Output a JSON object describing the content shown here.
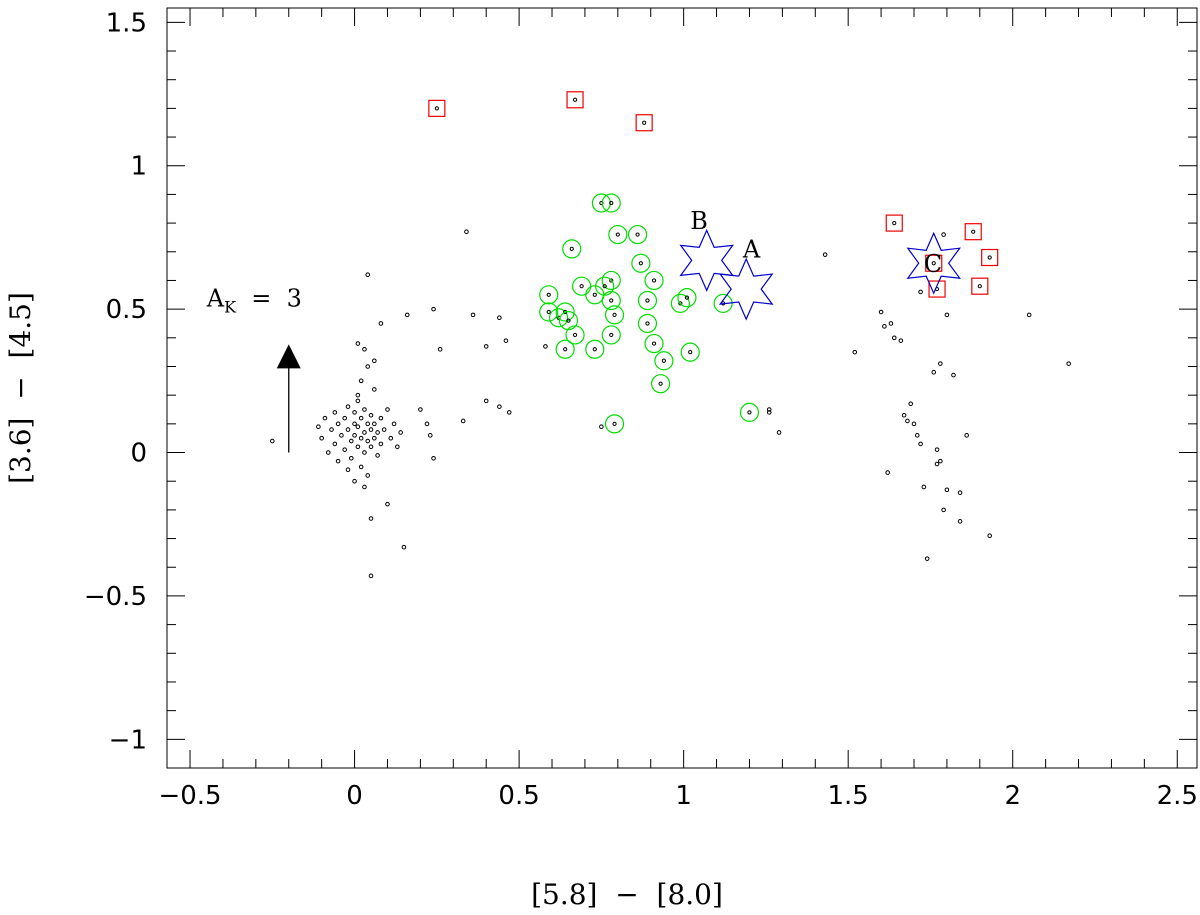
{
  "chart_data": {
    "type": "scatter",
    "title": "",
    "xlabel": "[5.8]  −  [8.0]",
    "ylabel": "[3.6]  −  [4.5]",
    "xlim": [
      -0.57,
      2.56
    ],
    "ylim": [
      -1.1,
      1.55
    ],
    "x_ticks": [
      {
        "value": -0.5,
        "label": "−0.5"
      },
      {
        "value": 0,
        "label": "0"
      },
      {
        "value": 0.5,
        "label": "0.5"
      },
      {
        "value": 1,
        "label": "1"
      },
      {
        "value": 1.5,
        "label": "1.5"
      },
      {
        "value": 2,
        "label": "2"
      },
      {
        "value": 2.5,
        "label": "2.5"
      }
    ],
    "y_ticks": [
      {
        "value": 1.5,
        "label": "1.5"
      },
      {
        "value": 1,
        "label": "1"
      },
      {
        "value": 0.5,
        "label": "0.5"
      },
      {
        "value": 0,
        "label": "0"
      },
      {
        "value": -0.5,
        "label": "−0.5"
      },
      {
        "value": -1,
        "label": "−1"
      }
    ],
    "grid": false,
    "colors": {
      "points": "#000000",
      "circles": "#00dd00",
      "squares": "#ee0000",
      "stars": "#0000cc"
    },
    "series": [
      {
        "marker": "dot",
        "points": [
          [
            -0.25,
            0.04
          ],
          [
            -0.11,
            0.09
          ],
          [
            -0.1,
            0.05
          ],
          [
            -0.09,
            0.12
          ],
          [
            -0.08,
            0.0
          ],
          [
            -0.07,
            0.08
          ],
          [
            -0.06,
            0.14
          ],
          [
            -0.06,
            0.03
          ],
          [
            -0.05,
            0.1
          ],
          [
            -0.05,
            -0.03
          ],
          [
            -0.04,
            0.06
          ],
          [
            -0.03,
            0.12
          ],
          [
            -0.03,
            0.01
          ],
          [
            -0.02,
            0.08
          ],
          [
            -0.02,
            0.16
          ],
          [
            -0.01,
            0.04
          ],
          [
            -0.01,
            -0.02
          ],
          [
            0.0,
            0.1
          ],
          [
            0.0,
            0.06
          ],
          [
            0.0,
            0.14
          ],
          [
            0.01,
            0.02
          ],
          [
            0.01,
            0.09
          ],
          [
            0.01,
            0.18
          ],
          [
            0.02,
            0.05
          ],
          [
            0.02,
            -0.05
          ],
          [
            0.02,
            0.12
          ],
          [
            0.03,
            0.07
          ],
          [
            0.03,
            0.0
          ],
          [
            0.03,
            0.15
          ],
          [
            0.04,
            0.1
          ],
          [
            0.04,
            0.04
          ],
          [
            0.04,
            -0.08
          ],
          [
            0.05,
            0.08
          ],
          [
            0.05,
            0.13
          ],
          [
            0.05,
            0.02
          ],
          [
            0.06,
            0.1
          ],
          [
            0.06,
            0.05
          ],
          [
            0.07,
            0.07
          ],
          [
            0.07,
            -0.01
          ],
          [
            0.08,
            0.12
          ],
          [
            0.08,
            0.03
          ],
          [
            0.09,
            0.08
          ],
          [
            0.1,
            0.15
          ],
          [
            0.11,
            0.05
          ],
          [
            0.12,
            0.1
          ],
          [
            0.13,
            0.02
          ],
          [
            0.14,
            0.07
          ],
          [
            -0.02,
            -0.06
          ],
          [
            0.0,
            -0.1
          ],
          [
            0.03,
            -0.12
          ],
          [
            0.01,
            0.2
          ],
          [
            0.06,
            0.22
          ],
          [
            0.02,
            0.25
          ],
          [
            0.04,
            0.3
          ],
          [
            0.06,
            0.32
          ],
          [
            0.03,
            0.36
          ],
          [
            0.01,
            0.38
          ],
          [
            0.04,
            0.62
          ],
          [
            0.05,
            -0.23
          ],
          [
            0.05,
            -0.43
          ],
          [
            0.15,
            -0.33
          ],
          [
            0.1,
            -0.18
          ],
          [
            0.08,
            0.45
          ],
          [
            0.16,
            0.48
          ],
          [
            0.2,
            0.15
          ],
          [
            0.22,
            0.1
          ],
          [
            0.23,
            0.06
          ],
          [
            0.24,
            -0.02
          ],
          [
            0.26,
            0.36
          ],
          [
            0.24,
            0.5
          ],
          [
            0.34,
            0.77
          ],
          [
            0.33,
            0.11
          ],
          [
            0.36,
            0.48
          ],
          [
            0.4,
            0.37
          ],
          [
            0.4,
            0.18
          ],
          [
            0.44,
            0.16
          ],
          [
            0.44,
            0.47
          ],
          [
            0.46,
            0.39
          ],
          [
            0.47,
            0.14
          ],
          [
            0.58,
            0.37
          ],
          [
            0.75,
            0.09
          ],
          [
            1.26,
            0.15
          ],
          [
            1.26,
            0.14
          ],
          [
            1.29,
            0.07
          ],
          [
            1.43,
            0.69
          ],
          [
            1.52,
            0.35
          ],
          [
            1.6,
            0.49
          ],
          [
            1.61,
            0.44
          ],
          [
            1.63,
            0.45
          ],
          [
            1.64,
            0.4
          ],
          [
            1.66,
            0.39
          ],
          [
            1.67,
            0.13
          ],
          [
            1.68,
            0.11
          ],
          [
            1.69,
            0.17
          ],
          [
            1.7,
            0.1
          ],
          [
            1.71,
            0.06
          ],
          [
            1.72,
            0.03
          ],
          [
            1.76,
            0.28
          ],
          [
            1.73,
            -0.12
          ],
          [
            1.74,
            -0.37
          ],
          [
            1.77,
            0.01
          ],
          [
            1.77,
            -0.04
          ],
          [
            1.78,
            -0.03
          ],
          [
            1.79,
            -0.2
          ],
          [
            1.8,
            -0.13
          ],
          [
            1.82,
            0.27
          ],
          [
            1.84,
            -0.14
          ],
          [
            1.84,
            -0.24
          ],
          [
            1.86,
            0.06
          ],
          [
            1.93,
            -0.29
          ],
          [
            2.05,
            0.48
          ],
          [
            2.17,
            0.31
          ],
          [
            1.78,
            0.31
          ],
          [
            1.72,
            0.56
          ],
          [
            1.79,
            0.76
          ],
          [
            1.8,
            0.48
          ],
          [
            1.62,
            -0.07
          ]
        ]
      },
      {
        "marker": "circle",
        "points": [
          [
            0.75,
            0.87
          ],
          [
            0.78,
            0.87
          ],
          [
            0.66,
            0.71
          ],
          [
            0.8,
            0.76
          ],
          [
            0.86,
            0.76
          ],
          [
            0.87,
            0.66
          ],
          [
            0.91,
            0.6
          ],
          [
            0.78,
            0.6
          ],
          [
            0.76,
            0.58
          ],
          [
            0.69,
            0.58
          ],
          [
            0.73,
            0.55
          ],
          [
            0.78,
            0.53
          ],
          [
            0.89,
            0.53
          ],
          [
            0.99,
            0.52
          ],
          [
            1.01,
            0.54
          ],
          [
            1.12,
            0.52
          ],
          [
            0.59,
            0.55
          ],
          [
            0.59,
            0.49
          ],
          [
            0.62,
            0.47
          ],
          [
            0.64,
            0.49
          ],
          [
            0.65,
            0.46
          ],
          [
            0.67,
            0.41
          ],
          [
            0.79,
            0.48
          ],
          [
            0.78,
            0.41
          ],
          [
            0.89,
            0.45
          ],
          [
            0.91,
            0.38
          ],
          [
            0.64,
            0.36
          ],
          [
            0.73,
            0.36
          ],
          [
            0.94,
            0.32
          ],
          [
            1.02,
            0.35
          ],
          [
            0.93,
            0.24
          ],
          [
            0.79,
            0.1
          ],
          [
            1.2,
            0.14
          ]
        ]
      },
      {
        "marker": "square",
        "points": [
          [
            0.25,
            1.2
          ],
          [
            0.67,
            1.23
          ],
          [
            0.88,
            1.15
          ],
          [
            1.64,
            0.8
          ],
          [
            1.88,
            0.77
          ],
          [
            1.93,
            0.68
          ],
          [
            1.76,
            0.66
          ],
          [
            1.77,
            0.57
          ],
          [
            1.9,
            0.58
          ]
        ]
      },
      {
        "marker": "star",
        "points": [
          [
            1.07,
            0.67
          ],
          [
            1.19,
            0.57
          ],
          [
            1.76,
            0.66
          ]
        ]
      }
    ],
    "annotations": [
      {
        "text": "A",
        "x": 1.18,
        "y": 0.68
      },
      {
        "text": "B",
        "x": 1.02,
        "y": 0.78
      },
      {
        "text": "C",
        "x": 1.73,
        "y": 0.63
      }
    ],
    "extinction_vector": {
      "label": "A",
      "subscript": "K",
      "suffix": "  =  3",
      "x": -0.2,
      "y_from": 0.0,
      "y_to": 0.37
    }
  }
}
